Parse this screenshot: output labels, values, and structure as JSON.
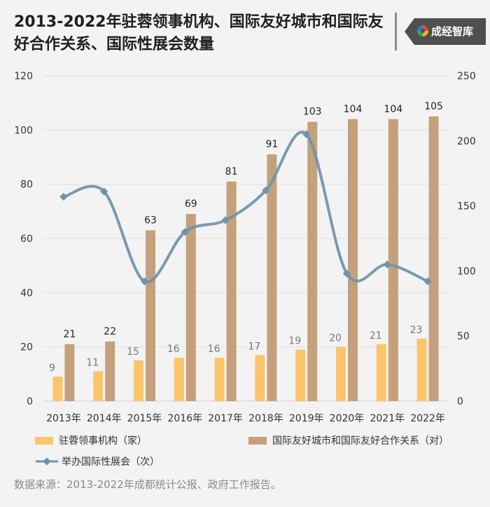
{
  "header": {
    "title": "2013-2022年驻蓉领事机构、国际友好城市和国际友好合作关系、国际性展会数量",
    "brand": "成经智库"
  },
  "source": "数据来源：2013-2022年成都统计公报、政府工作报告。",
  "colors": {
    "consulates": "#fcc56a",
    "cities": "#c4a07c",
    "exhibitions": "#6e93ad",
    "background": "#f3f3f3"
  },
  "chart_data": {
    "type": "bar",
    "categories": [
      "2013年",
      "2014年",
      "2015年",
      "2016年",
      "2017年",
      "2018年",
      "2019年",
      "2020年",
      "2021年",
      "2022年"
    ],
    "series": [
      {
        "name": "驻蓉领事机构（家）",
        "type": "bar",
        "axis": "left",
        "values": [
          9,
          11,
          15,
          16,
          16,
          17,
          19,
          20,
          21,
          23
        ]
      },
      {
        "name": "国际友好城市和国际友好合作关系（对）",
        "type": "bar",
        "axis": "left",
        "values": [
          21,
          22,
          63,
          69,
          81,
          91,
          103,
          104,
          104,
          105
        ]
      },
      {
        "name": "举办国际性展会（次）",
        "type": "line",
        "axis": "right",
        "values": [
          157,
          161,
          92,
          130,
          139,
          162,
          205,
          98,
          105,
          92
        ]
      }
    ],
    "y_left": {
      "min": 0,
      "max": 120,
      "ticks": [
        0,
        20,
        40,
        60,
        80,
        100,
        120
      ]
    },
    "y_right": {
      "min": 0,
      "max": 250,
      "ticks": [
        0,
        50,
        100,
        150,
        200,
        250
      ]
    },
    "grid": true,
    "legend_position": "bottom"
  }
}
